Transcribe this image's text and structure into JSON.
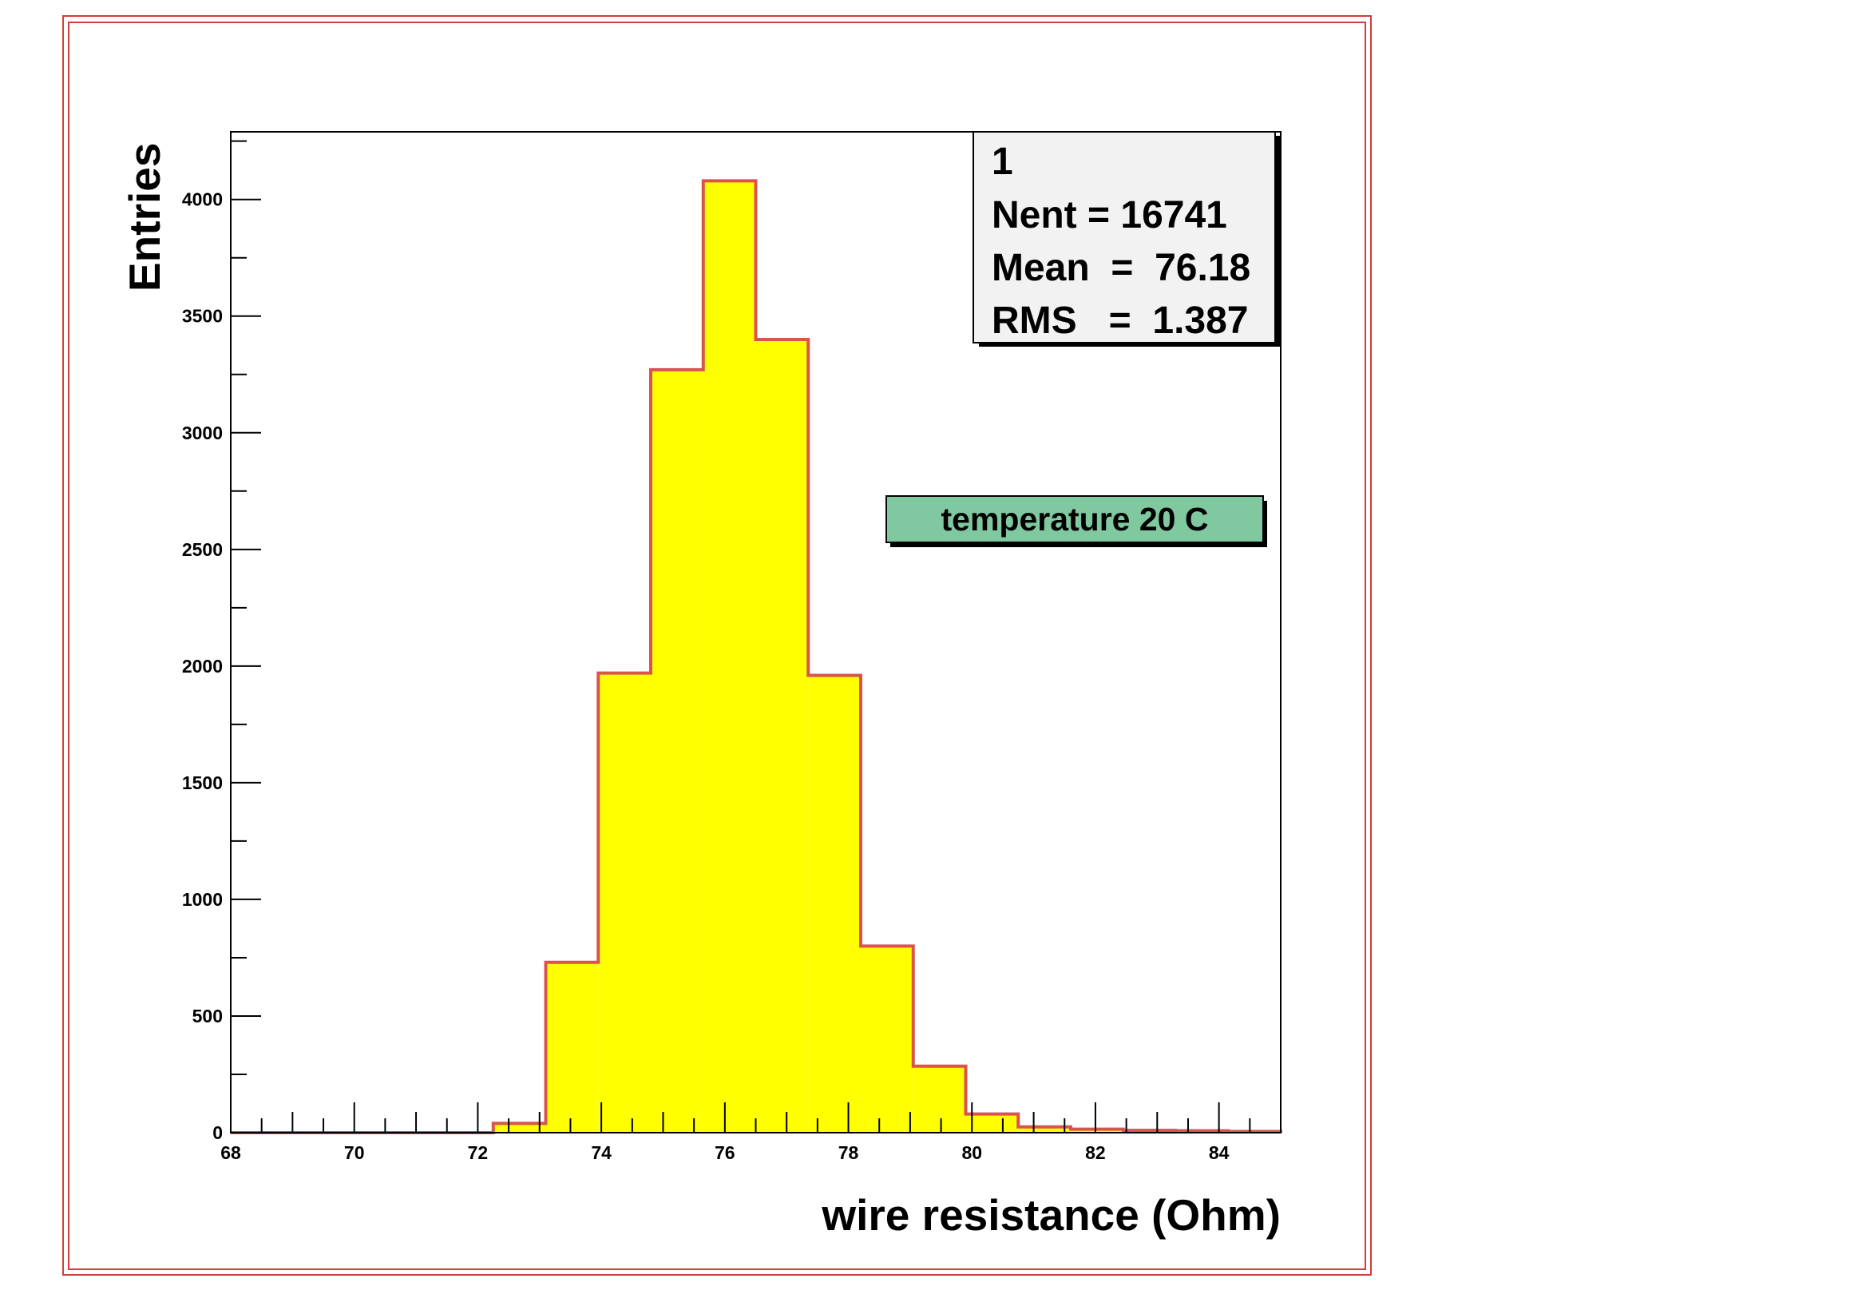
{
  "colors": {
    "frame": "#d33c3c",
    "fill": "#ffff00",
    "outline": "#d9534f",
    "label_box": "#80c8a0"
  },
  "chart_data": {
    "type": "histogram",
    "xlabel": "wire resistance (Ohm)",
    "ylabel": "Entries",
    "xlim": [
      68,
      85
    ],
    "ylim": [
      0,
      4290
    ],
    "x_ticks": [
      "68",
      "70",
      "72",
      "74",
      "76",
      "78",
      "80",
      "82",
      "84"
    ],
    "y_ticks": [
      "0",
      "500",
      "1000",
      "1500",
      "2000",
      "2500",
      "3000",
      "3500",
      "4000"
    ],
    "bin_edges": [
      68,
      68.85,
      69.7,
      70.55,
      71.4,
      72.25,
      73.1,
      73.95,
      74.8,
      75.65,
      76.5,
      77.35,
      78.2,
      79.05,
      79.9,
      80.75,
      81.6,
      82.45,
      83.3,
      84.15,
      85
    ],
    "counts": [
      0,
      0,
      0,
      0,
      0,
      40,
      730,
      1970,
      3270,
      4080,
      3400,
      1960,
      800,
      285,
      80,
      25,
      15,
      10,
      8,
      5
    ],
    "stats": {
      "title": "1",
      "nent": "Nent = 16741",
      "mean": "Mean  =  76.18",
      "rms": "RMS   =  1.387"
    },
    "annotation": "temperature 20 C"
  }
}
